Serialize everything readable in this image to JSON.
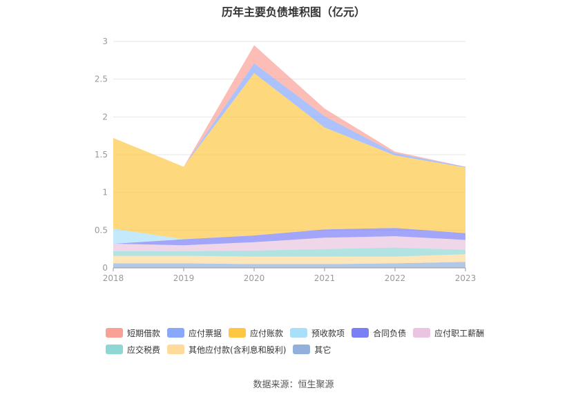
{
  "title": "历年主要负债堆积图（亿元）",
  "source": "数据来源：恒生聚源",
  "chart_data": {
    "type": "area",
    "stacked": true,
    "title": "历年主要负债堆积图（亿元）",
    "categories": [
      "2018",
      "2019",
      "2020",
      "2021",
      "2022",
      "2023"
    ],
    "ylim": [
      0,
      3
    ],
    "yticks": [
      "0",
      "0.5",
      "1",
      "1.5",
      "2",
      "2.5",
      "3"
    ],
    "grid": true,
    "legend_position": "bottom",
    "series": [
      {
        "name": "其它",
        "color": "#93b0dc",
        "values": [
          0.06,
          0.06,
          0.05,
          0.05,
          0.06,
          0.08
        ]
      },
      {
        "name": "其他应付款(含利息和股利)",
        "color": "#fedb9a",
        "values": [
          0.1,
          0.1,
          0.1,
          0.1,
          0.09,
          0.1
        ]
      },
      {
        "name": "应交税费",
        "color": "#8fd7d5",
        "values": [
          0.06,
          0.06,
          0.08,
          0.1,
          0.12,
          0.06
        ]
      },
      {
        "name": "应付职工薪酬",
        "color": "#eac4e0",
        "values": [
          0.1,
          0.08,
          0.11,
          0.15,
          0.15,
          0.13
        ]
      },
      {
        "name": "合同负债",
        "color": "#7b7ff5",
        "values": [
          0.0,
          0.08,
          0.09,
          0.11,
          0.11,
          0.09
        ]
      },
      {
        "name": "预收款项",
        "color": "#a9dff8",
        "values": [
          0.2,
          0.0,
          0.0,
          0.0,
          0.0,
          0.0
        ]
      },
      {
        "name": "应付账款",
        "color": "#fdc744",
        "values": [
          1.2,
          0.96,
          2.15,
          1.35,
          0.96,
          0.87
        ]
      },
      {
        "name": "应付票据",
        "color": "#89a8fb",
        "values": [
          0.0,
          0.0,
          0.13,
          0.15,
          0.03,
          0.01
        ]
      },
      {
        "name": "短期借款",
        "color": "#f9a197",
        "values": [
          0.0,
          0.0,
          0.24,
          0.1,
          0.02,
          0.0
        ]
      }
    ],
    "legend": [
      [
        "短期借款",
        "应付票据",
        "应付账款",
        "预收款项",
        "合同负债",
        "应付职工薪酬"
      ],
      [
        "应交税费",
        "其他应付款(含利息和股利)",
        "其它"
      ]
    ]
  }
}
